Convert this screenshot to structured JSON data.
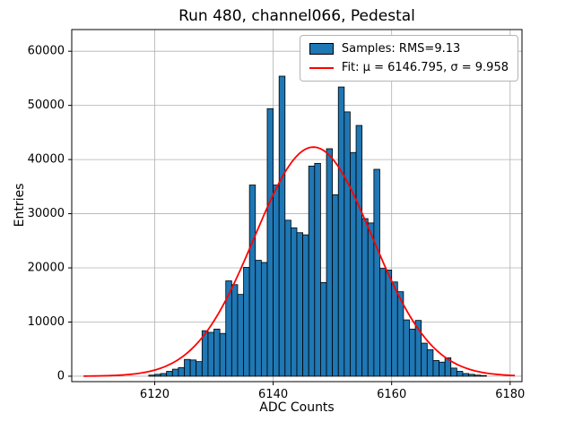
{
  "chart_data": {
    "type": "bar",
    "title": "Run 480, channel066, Pedestal",
    "xlabel": "ADC Counts",
    "ylabel": "Entries",
    "xlim": [
      6106,
      6182
    ],
    "ylim": [
      -1000,
      64000
    ],
    "x_ticks": [
      6120,
      6140,
      6160,
      6180
    ],
    "y_ticks": [
      0,
      10000,
      20000,
      30000,
      40000,
      50000,
      60000
    ],
    "grid": true,
    "grid_color": "#b0b0b0",
    "bar_color": "#1f77b4",
    "bar_edge_color": "#000000",
    "bin_start": 6119,
    "bin_width": 1,
    "values": [
      200,
      350,
      500,
      900,
      1300,
      1600,
      3100,
      3000,
      2700,
      8400,
      8100,
      8700,
      7900,
      17600,
      16900,
      15100,
      20100,
      35300,
      21400,
      21000,
      49400,
      35300,
      55400,
      28800,
      27400,
      26500,
      26100,
      38800,
      39300,
      17300,
      42000,
      33500,
      53400,
      48800,
      41300,
      46300,
      29100,
      28300,
      38200,
      19900,
      19600,
      17400,
      15600,
      10400,
      8700,
      10300,
      6100,
      4900,
      2900,
      2600,
      3400,
      1500,
      900,
      500,
      350,
      200,
      120
    ],
    "fit": {
      "type": "gaussian",
      "mu": 6146.795,
      "sigma": 9.958,
      "amplitude": 42300,
      "color": "#ff0000",
      "range": [
        6108,
        6181
      ]
    },
    "legend": {
      "position": "upper right",
      "entries": [
        {
          "label": "Samples: RMS=9.13",
          "swatch": "bar",
          "color": "#1f77b4"
        },
        {
          "label": "Fit: μ = 6146.795, σ = 9.958",
          "swatch": "line",
          "color": "#ff0000"
        }
      ]
    }
  }
}
